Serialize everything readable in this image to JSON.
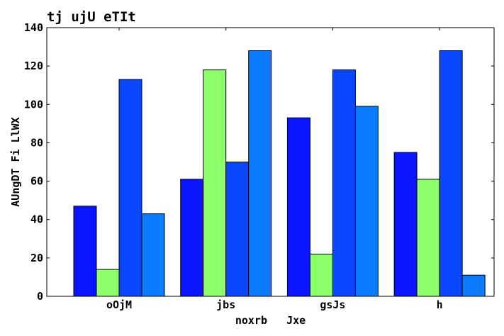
{
  "chart_data": {
    "type": "bar",
    "title": "tj  ujU eTIt",
    "xlabel": "noxrb   Jxe",
    "ylabel": "AUngDT Fi LlWX",
    "categories": [
      "oOjM",
      "jbs",
      "gsJs",
      "h"
    ],
    "ylim": [
      0,
      140
    ],
    "yticks": [
      0,
      20,
      40,
      60,
      80,
      100,
      120,
      140
    ],
    "grid": false,
    "legend": "none",
    "series": [
      {
        "values": [
          47,
          61,
          93,
          75
        ],
        "color": "#0a14ff"
      },
      {
        "values": [
          14,
          118,
          22,
          61
        ],
        "color": "#8cff6a"
      },
      {
        "values": [
          113,
          70,
          118,
          128
        ],
        "color": "#0a48ff"
      },
      {
        "values": [
          43,
          128,
          99,
          11
        ],
        "color": "#0a7cff"
      }
    ]
  }
}
